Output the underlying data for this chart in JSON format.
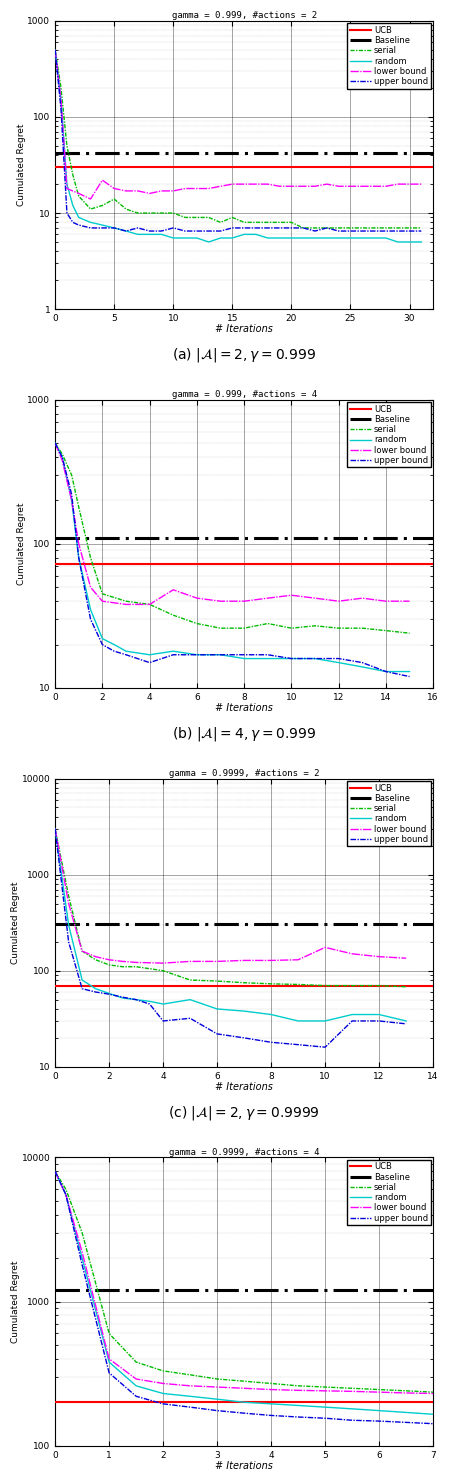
{
  "plots": [
    {
      "title": "gamma = 0.999, #actions = 2",
      "caption": "(a) $|\\mathcal{A}| = 2, \\gamma = 0.999$",
      "xlim": [
        0,
        32
      ],
      "ylim": [
        1,
        1000
      ],
      "xticks": [
        0,
        5,
        10,
        15,
        20,
        25,
        30
      ],
      "xmax": 32,
      "UCB_val": 30,
      "Baseline_val": 42,
      "serial": [
        [
          0,
          500
        ],
        [
          0.5,
          200
        ],
        [
          1,
          50
        ],
        [
          1.5,
          25
        ],
        [
          2,
          15
        ],
        [
          3,
          11
        ],
        [
          4,
          12
        ],
        [
          5,
          14
        ],
        [
          6,
          11
        ],
        [
          7,
          10
        ],
        [
          8,
          10
        ],
        [
          9,
          10
        ],
        [
          10,
          10
        ],
        [
          11,
          9
        ],
        [
          12,
          9
        ],
        [
          13,
          9
        ],
        [
          14,
          8
        ],
        [
          15,
          9
        ],
        [
          16,
          8
        ],
        [
          17,
          8
        ],
        [
          18,
          8
        ],
        [
          19,
          8
        ],
        [
          20,
          8
        ],
        [
          21,
          7
        ],
        [
          22,
          7
        ],
        [
          23,
          7
        ],
        [
          24,
          7
        ],
        [
          25,
          7
        ],
        [
          26,
          7
        ],
        [
          27,
          7
        ],
        [
          28,
          7
        ],
        [
          29,
          7
        ],
        [
          30,
          7
        ],
        [
          31,
          7
        ]
      ],
      "random": [
        [
          0,
          500
        ],
        [
          0.5,
          150
        ],
        [
          1,
          20
        ],
        [
          1.5,
          12
        ],
        [
          2,
          9
        ],
        [
          3,
          8
        ],
        [
          4,
          7.5
        ],
        [
          5,
          7
        ],
        [
          6,
          6.5
        ],
        [
          7,
          6
        ],
        [
          8,
          6
        ],
        [
          9,
          6
        ],
        [
          10,
          5.5
        ],
        [
          11,
          5.5
        ],
        [
          12,
          5.5
        ],
        [
          13,
          5
        ],
        [
          14,
          5.5
        ],
        [
          15,
          5.5
        ],
        [
          16,
          6
        ],
        [
          17,
          6
        ],
        [
          18,
          5.5
        ],
        [
          19,
          5.5
        ],
        [
          20,
          5.5
        ],
        [
          21,
          5.5
        ],
        [
          22,
          5.5
        ],
        [
          23,
          5.5
        ],
        [
          24,
          5.5
        ],
        [
          25,
          5.5
        ],
        [
          26,
          5.5
        ],
        [
          27,
          5.5
        ],
        [
          28,
          5.5
        ],
        [
          29,
          5
        ],
        [
          30,
          5
        ],
        [
          31,
          5
        ]
      ],
      "lower_bound": [
        [
          0,
          500
        ],
        [
          0.5,
          150
        ],
        [
          1,
          18
        ],
        [
          2,
          16
        ],
        [
          3,
          14
        ],
        [
          4,
          22
        ],
        [
          5,
          18
        ],
        [
          6,
          17
        ],
        [
          7,
          17
        ],
        [
          8,
          16
        ],
        [
          9,
          17
        ],
        [
          10,
          17
        ],
        [
          11,
          18
        ],
        [
          12,
          18
        ],
        [
          13,
          18
        ],
        [
          14,
          19
        ],
        [
          15,
          20
        ],
        [
          16,
          20
        ],
        [
          17,
          20
        ],
        [
          18,
          20
        ],
        [
          19,
          19
        ],
        [
          20,
          19
        ],
        [
          21,
          19
        ],
        [
          22,
          19
        ],
        [
          23,
          20
        ],
        [
          24,
          19
        ],
        [
          25,
          19
        ],
        [
          26,
          19
        ],
        [
          27,
          19
        ],
        [
          28,
          19
        ],
        [
          29,
          20
        ],
        [
          30,
          20
        ],
        [
          31,
          20
        ]
      ],
      "upper_bound": [
        [
          0,
          500
        ],
        [
          0.5,
          120
        ],
        [
          1,
          10
        ],
        [
          1.5,
          8
        ],
        [
          2,
          7.5
        ],
        [
          3,
          7
        ],
        [
          4,
          7
        ],
        [
          5,
          7
        ],
        [
          6,
          6.5
        ],
        [
          7,
          7
        ],
        [
          8,
          6.5
        ],
        [
          9,
          6.5
        ],
        [
          10,
          7
        ],
        [
          11,
          6.5
        ],
        [
          12,
          6.5
        ],
        [
          13,
          6.5
        ],
        [
          14,
          6.5
        ],
        [
          15,
          7
        ],
        [
          16,
          7
        ],
        [
          17,
          7
        ],
        [
          18,
          7
        ],
        [
          19,
          7
        ],
        [
          20,
          7
        ],
        [
          21,
          7
        ],
        [
          22,
          6.5
        ],
        [
          23,
          7
        ],
        [
          24,
          6.5
        ],
        [
          25,
          6.5
        ],
        [
          26,
          6.5
        ],
        [
          27,
          6.5
        ],
        [
          28,
          6.5
        ],
        [
          29,
          6.5
        ],
        [
          30,
          6.5
        ],
        [
          31,
          6.5
        ]
      ]
    },
    {
      "title": "gamma = 0.999, #actions = 4",
      "caption": "(b) $|\\mathcal{A}| = 4, \\gamma = 0.999$",
      "xlim": [
        0,
        16
      ],
      "ylim": [
        10,
        1000
      ],
      "xticks": [
        0,
        2,
        4,
        6,
        8,
        10,
        12,
        14,
        16
      ],
      "xmax": 16,
      "UCB_val": 72,
      "Baseline_val": 110,
      "serial": [
        [
          0,
          500
        ],
        [
          0.3,
          420
        ],
        [
          0.7,
          300
        ],
        [
          1,
          180
        ],
        [
          1.5,
          80
        ],
        [
          2,
          45
        ],
        [
          3,
          40
        ],
        [
          4,
          38
        ],
        [
          5,
          32
        ],
        [
          6,
          28
        ],
        [
          7,
          26
        ],
        [
          8,
          26
        ],
        [
          9,
          28
        ],
        [
          10,
          26
        ],
        [
          11,
          27
        ],
        [
          12,
          26
        ],
        [
          13,
          26
        ],
        [
          14,
          25
        ],
        [
          15,
          24
        ]
      ],
      "random": [
        [
          0,
          500
        ],
        [
          0.3,
          400
        ],
        [
          0.7,
          200
        ],
        [
          1,
          80
        ],
        [
          1.5,
          35
        ],
        [
          2,
          22
        ],
        [
          2.5,
          20
        ],
        [
          3,
          18
        ],
        [
          4,
          17
        ],
        [
          5,
          18
        ],
        [
          6,
          17
        ],
        [
          7,
          17
        ],
        [
          8,
          16
        ],
        [
          9,
          16
        ],
        [
          10,
          16
        ],
        [
          11,
          16
        ],
        [
          12,
          15
        ],
        [
          13,
          14
        ],
        [
          14,
          13
        ],
        [
          15,
          13
        ]
      ],
      "lower_bound": [
        [
          0,
          500
        ],
        [
          0.3,
          380
        ],
        [
          0.7,
          200
        ],
        [
          1,
          100
        ],
        [
          1.5,
          50
        ],
        [
          2,
          40
        ],
        [
          3,
          38
        ],
        [
          4,
          38
        ],
        [
          5,
          48
        ],
        [
          6,
          42
        ],
        [
          7,
          40
        ],
        [
          8,
          40
        ],
        [
          9,
          42
        ],
        [
          10,
          44
        ],
        [
          11,
          42
        ],
        [
          12,
          40
        ],
        [
          13,
          42
        ],
        [
          14,
          40
        ],
        [
          15,
          40
        ]
      ],
      "upper_bound": [
        [
          0,
          500
        ],
        [
          0.3,
          400
        ],
        [
          0.7,
          220
        ],
        [
          1,
          80
        ],
        [
          1.5,
          30
        ],
        [
          2,
          20
        ],
        [
          2.5,
          18
        ],
        [
          3,
          17
        ],
        [
          4,
          15
        ],
        [
          5,
          17
        ],
        [
          6,
          17
        ],
        [
          7,
          17
        ],
        [
          8,
          17
        ],
        [
          9,
          17
        ],
        [
          10,
          16
        ],
        [
          11,
          16
        ],
        [
          12,
          16
        ],
        [
          13,
          15
        ],
        [
          14,
          13
        ],
        [
          15,
          12
        ]
      ]
    },
    {
      "title": "gamma = 0.9999, #actions = 2",
      "caption": "(c) $|\\mathcal{A}| = 2, \\gamma = 0.9999$",
      "xlim": [
        0,
        14
      ],
      "ylim": [
        10,
        10000
      ],
      "xticks": [
        0,
        2,
        4,
        6,
        8,
        10,
        12,
        14
      ],
      "xmax": 14,
      "UCB_val": 70,
      "Baseline_val": 310,
      "serial": [
        [
          0,
          3000
        ],
        [
          0.5,
          600
        ],
        [
          1,
          160
        ],
        [
          1.5,
          130
        ],
        [
          2,
          115
        ],
        [
          2.5,
          110
        ],
        [
          3,
          110
        ],
        [
          3.5,
          105
        ],
        [
          4,
          100
        ],
        [
          5,
          80
        ],
        [
          6,
          78
        ],
        [
          7,
          75
        ],
        [
          8,
          73
        ],
        [
          9,
          72
        ],
        [
          10,
          70
        ],
        [
          11,
          70
        ],
        [
          12,
          70
        ],
        [
          13,
          68
        ]
      ],
      "random": [
        [
          0,
          3000
        ],
        [
          0.5,
          300
        ],
        [
          1,
          80
        ],
        [
          1.5,
          65
        ],
        [
          2,
          58
        ],
        [
          2.5,
          52
        ],
        [
          3,
          50
        ],
        [
          3.5,
          48
        ],
        [
          4,
          45
        ],
        [
          5,
          50
        ],
        [
          6,
          40
        ],
        [
          7,
          38
        ],
        [
          8,
          35
        ],
        [
          9,
          30
        ],
        [
          10,
          30
        ],
        [
          11,
          35
        ],
        [
          12,
          35
        ],
        [
          13,
          30
        ]
      ],
      "lower_bound": [
        [
          0,
          3000
        ],
        [
          0.5,
          500
        ],
        [
          1,
          160
        ],
        [
          1.5,
          140
        ],
        [
          2,
          130
        ],
        [
          2.5,
          125
        ],
        [
          3,
          122
        ],
        [
          4,
          120
        ],
        [
          5,
          125
        ],
        [
          6,
          125
        ],
        [
          7,
          128
        ],
        [
          8,
          128
        ],
        [
          9,
          130
        ],
        [
          10,
          175
        ],
        [
          11,
          150
        ],
        [
          12,
          140
        ],
        [
          13,
          135
        ]
      ],
      "upper_bound": [
        [
          0,
          3000
        ],
        [
          0.5,
          200
        ],
        [
          1,
          65
        ],
        [
          1.5,
          60
        ],
        [
          2,
          57
        ],
        [
          2.5,
          53
        ],
        [
          3,
          50
        ],
        [
          3.5,
          45
        ],
        [
          4,
          30
        ],
        [
          5,
          32
        ],
        [
          6,
          22
        ],
        [
          7,
          20
        ],
        [
          8,
          18
        ],
        [
          9,
          17
        ],
        [
          10,
          16
        ],
        [
          11,
          30
        ],
        [
          12,
          30
        ],
        [
          13,
          28
        ]
      ]
    },
    {
      "title": "gamma = 0.9999, #actions = 4",
      "caption": "(d) $|\\mathcal{A}| = 4, \\gamma = 0.9999$",
      "xlim": [
        0,
        7
      ],
      "ylim": [
        100,
        10000
      ],
      "xticks": [
        0,
        1,
        2,
        3,
        4,
        5,
        6,
        7
      ],
      "xmax": 7,
      "UCB_val": 200,
      "Baseline_val": 1200,
      "serial": [
        [
          0,
          8000
        ],
        [
          0.2,
          6000
        ],
        [
          0.5,
          3000
        ],
        [
          1,
          600
        ],
        [
          1.5,
          380
        ],
        [
          2,
          330
        ],
        [
          2.5,
          310
        ],
        [
          3,
          290
        ],
        [
          3.5,
          280
        ],
        [
          4,
          270
        ],
        [
          4.5,
          260
        ],
        [
          5,
          255
        ],
        [
          5.5,
          250
        ],
        [
          6,
          245
        ],
        [
          6.5,
          240
        ],
        [
          7,
          235
        ]
      ],
      "random": [
        [
          0,
          8000
        ],
        [
          0.2,
          5500
        ],
        [
          0.5,
          2000
        ],
        [
          1,
          380
        ],
        [
          1.5,
          260
        ],
        [
          2,
          230
        ],
        [
          2.5,
          220
        ],
        [
          3,
          210
        ],
        [
          3.5,
          200
        ],
        [
          4,
          195
        ],
        [
          4.5,
          190
        ],
        [
          5,
          185
        ],
        [
          5.5,
          180
        ],
        [
          6,
          175
        ],
        [
          6.5,
          170
        ],
        [
          7,
          165
        ]
      ],
      "lower_bound": [
        [
          0,
          8000
        ],
        [
          0.2,
          5500
        ],
        [
          0.5,
          2200
        ],
        [
          1,
          400
        ],
        [
          1.5,
          290
        ],
        [
          2,
          270
        ],
        [
          2.5,
          260
        ],
        [
          3,
          255
        ],
        [
          3.5,
          250
        ],
        [
          4,
          245
        ],
        [
          4.5,
          242
        ],
        [
          5,
          240
        ],
        [
          5.5,
          238
        ],
        [
          6,
          235
        ],
        [
          6.5,
          232
        ],
        [
          7,
          230
        ]
      ],
      "upper_bound": [
        [
          0,
          8000
        ],
        [
          0.2,
          5500
        ],
        [
          0.5,
          1800
        ],
        [
          1,
          320
        ],
        [
          1.5,
          220
        ],
        [
          2,
          195
        ],
        [
          2.5,
          185
        ],
        [
          3,
          175
        ],
        [
          3.5,
          168
        ],
        [
          4,
          162
        ],
        [
          4.5,
          158
        ],
        [
          5,
          155
        ],
        [
          5.5,
          150
        ],
        [
          6,
          148
        ],
        [
          6.5,
          145
        ],
        [
          7,
          142
        ]
      ]
    }
  ],
  "colors": {
    "UCB": "#ff0000",
    "Baseline": "#000000",
    "serial": "#00bb00",
    "random": "#00cccc",
    "lower_bound": "#ff00ff",
    "upper_bound": "#0000dd"
  },
  "ylabel": "Cumulated Regret",
  "xlabel": "# Iterations"
}
